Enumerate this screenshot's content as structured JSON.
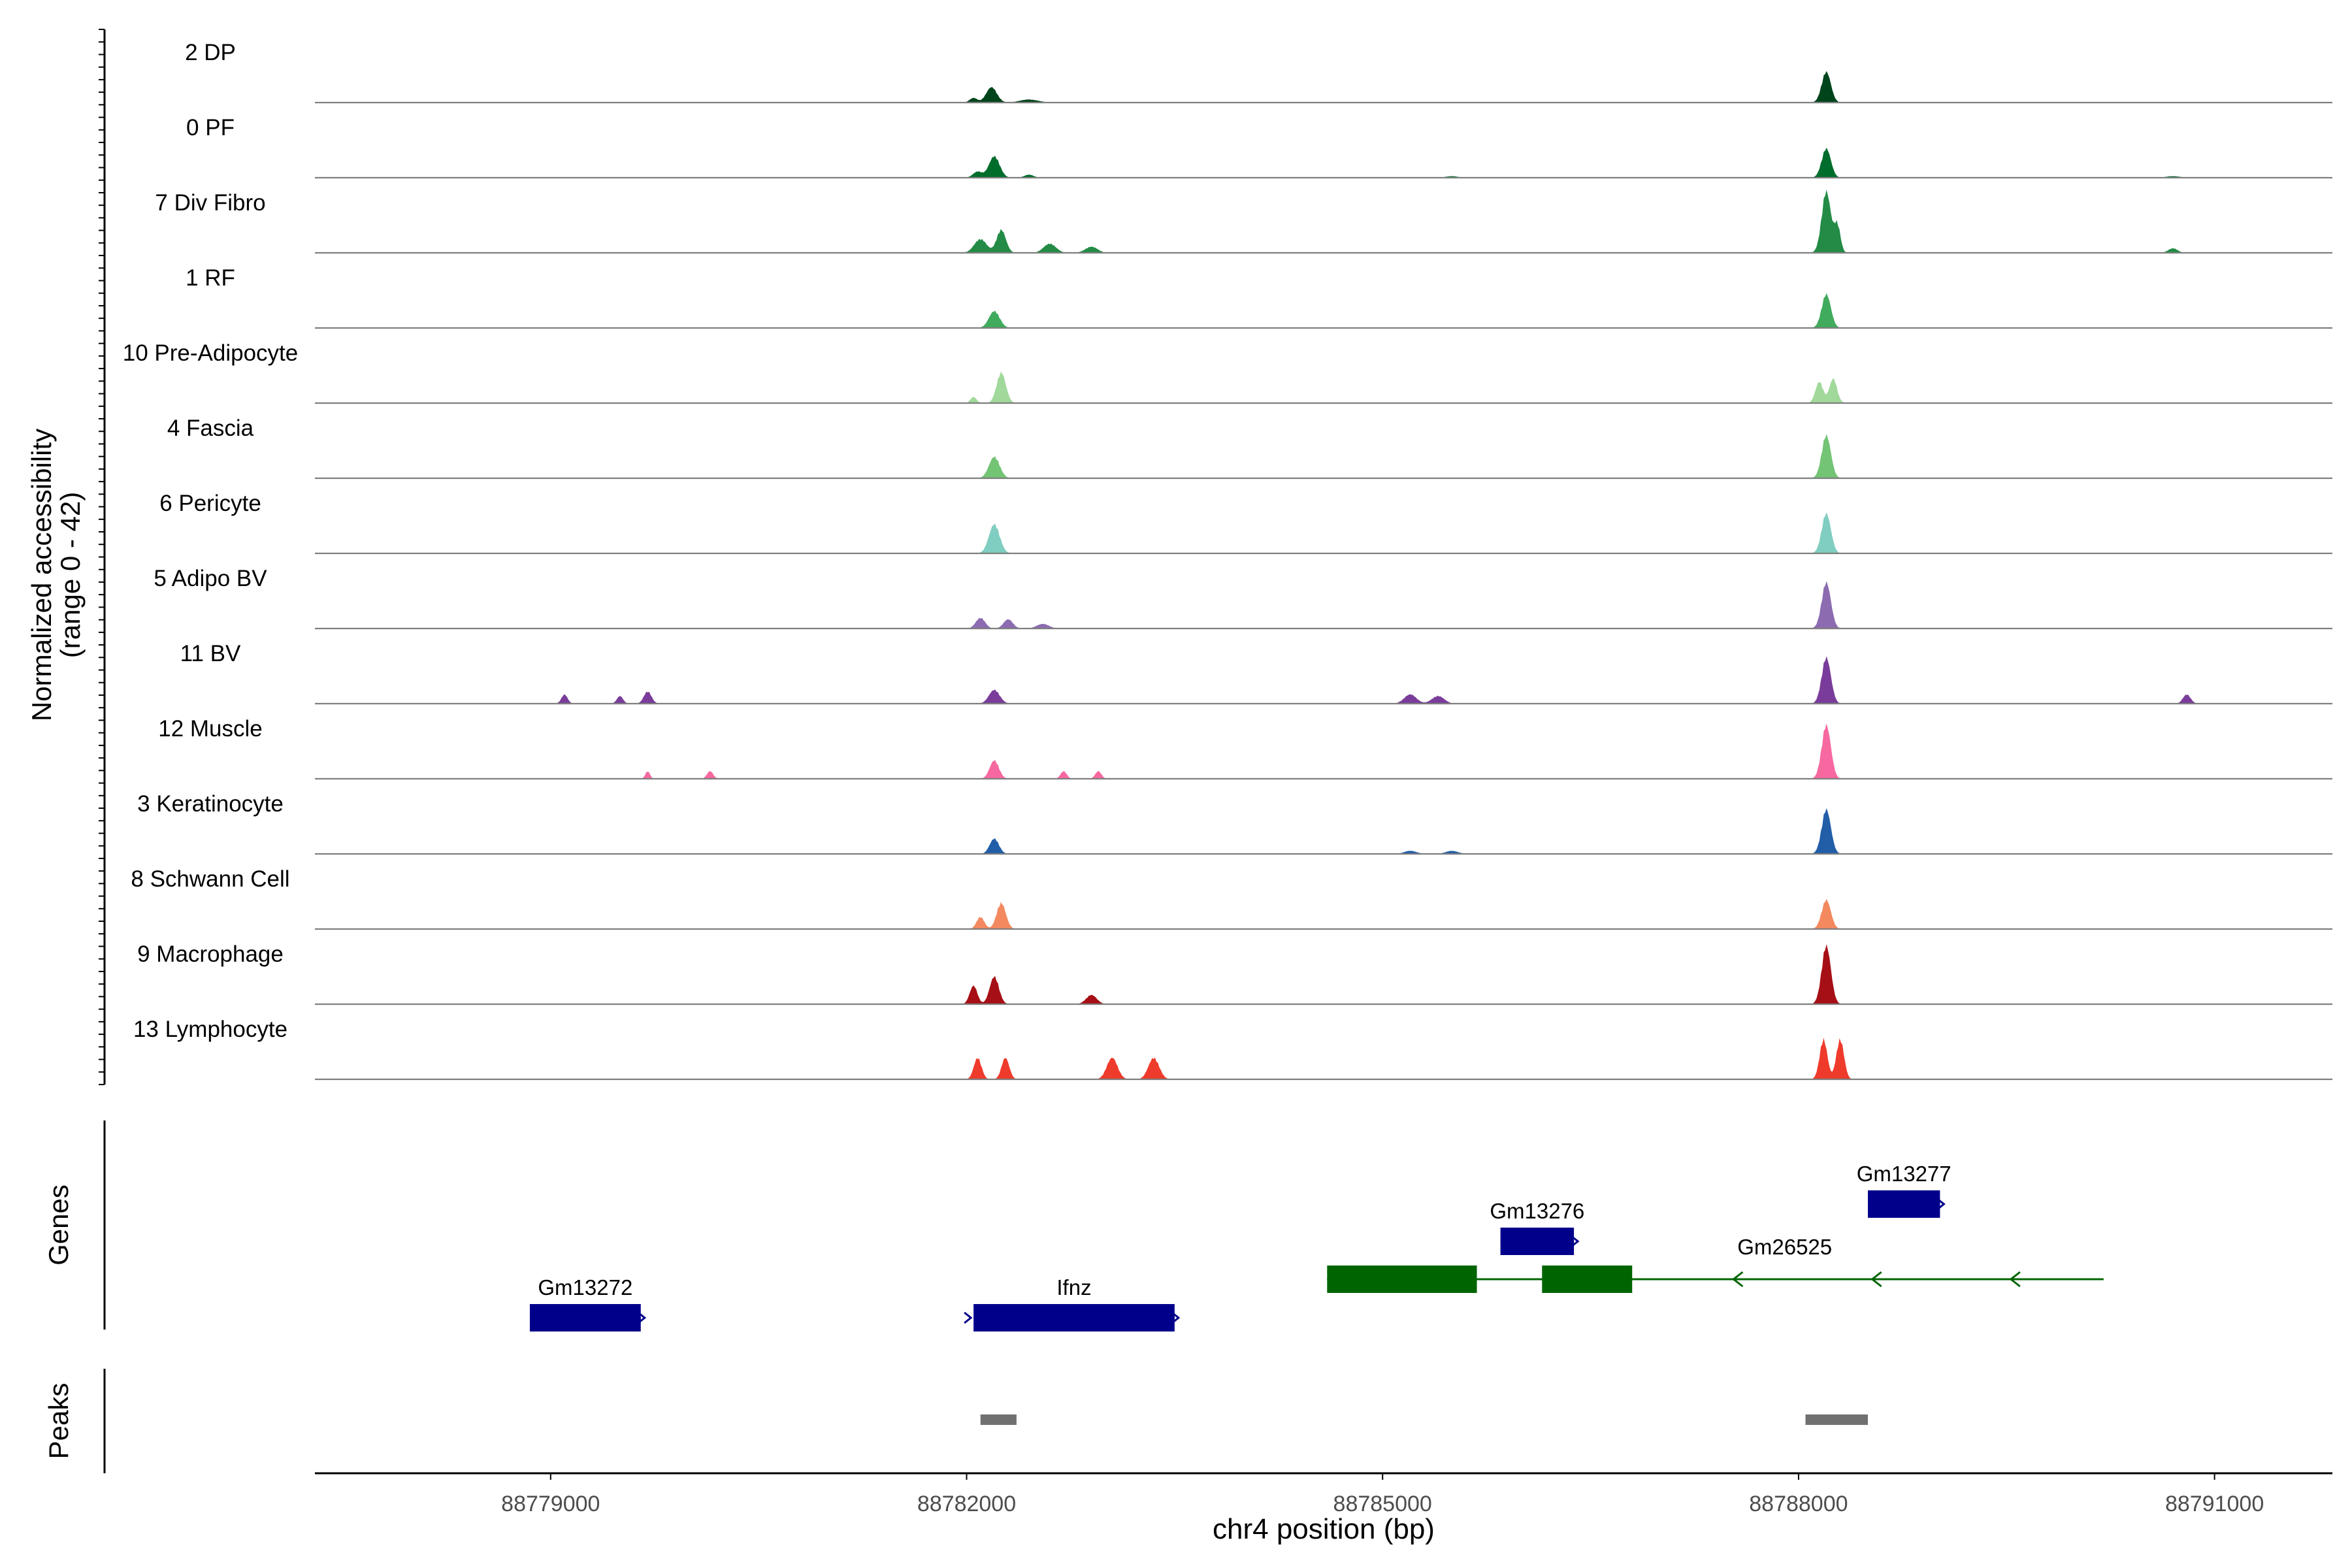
{
  "chart_data": {
    "type": "area",
    "title": "",
    "chromosome": "chr4",
    "ylabel_line1": "Normalized accessibility",
    "ylabel_line2": "(range 0 - 42)",
    "ylim": [
      0,
      42
    ],
    "xlabel": "chr4 position (bp)",
    "xlim": [
      88777300,
      88791850
    ],
    "xticks": [
      88779000,
      88782000,
      88785000,
      88788000,
      88791000
    ],
    "xtick_labels": [
      "88779000",
      "88782000",
      "88785000",
      "88788000",
      "88791000"
    ],
    "panel_labels": {
      "genes": "Genes",
      "peaks": "Peaks"
    },
    "series": [
      {
        "name": "2 DP",
        "color": "#00441b",
        "peaks": [
          [
            88782050,
            3,
            50
          ],
          [
            88782180,
            10,
            70
          ],
          [
            88782450,
            2,
            120
          ],
          [
            88788200,
            20,
            60
          ]
        ]
      },
      {
        "name": "0 PF",
        "color": "#006d2c",
        "peaks": [
          [
            88782080,
            4,
            60
          ],
          [
            88782200,
            14,
            70
          ],
          [
            88782450,
            2,
            60
          ],
          [
            88785500,
            1,
            80
          ],
          [
            88788200,
            19,
            60
          ],
          [
            88790700,
            1,
            90
          ]
        ]
      },
      {
        "name": "7 Div Fibro",
        "color": "#238b45",
        "peaks": [
          [
            88782100,
            9,
            80
          ],
          [
            88782250,
            15,
            60
          ],
          [
            88782600,
            6,
            80
          ],
          [
            88782900,
            4,
            80
          ],
          [
            88788200,
            40,
            60
          ],
          [
            88788280,
            18,
            40
          ],
          [
            88790700,
            3,
            60
          ]
        ]
      },
      {
        "name": "1 RF",
        "color": "#41ab5d",
        "peaks": [
          [
            88782200,
            11,
            70
          ],
          [
            88788200,
            22,
            60
          ]
        ]
      },
      {
        "name": "10 Pre-Adipocyte",
        "color": "#a1d99b",
        "peaks": [
          [
            88782050,
            4,
            40
          ],
          [
            88782250,
            20,
            60
          ],
          [
            88788150,
            14,
            50
          ],
          [
            88788250,
            16,
            50
          ]
        ]
      },
      {
        "name": "4 Fascia",
        "color": "#74c476",
        "peaks": [
          [
            88782200,
            14,
            70
          ],
          [
            88788200,
            28,
            60
          ]
        ]
      },
      {
        "name": "6 Pericyte",
        "color": "#80cdc1",
        "peaks": [
          [
            88782200,
            19,
            70
          ],
          [
            88788200,
            26,
            60
          ]
        ]
      },
      {
        "name": "5 Adipo BV",
        "color": "#8c6bb1",
        "peaks": [
          [
            88782100,
            7,
            60
          ],
          [
            88782300,
            6,
            60
          ],
          [
            88782550,
            3,
            80
          ],
          [
            88788200,
            30,
            60
          ]
        ]
      },
      {
        "name": "11 BV",
        "color": "#7a3c9a",
        "peaks": [
          [
            88779100,
            6,
            40
          ],
          [
            88779500,
            5,
            40
          ],
          [
            88779700,
            8,
            50
          ],
          [
            88782200,
            9,
            70
          ],
          [
            88785200,
            6,
            80
          ],
          [
            88785400,
            5,
            80
          ],
          [
            88788200,
            30,
            60
          ],
          [
            88790800,
            6,
            50
          ]
        ]
      },
      {
        "name": "12 Muscle",
        "color": "#f768a1",
        "peaks": [
          [
            88779700,
            5,
            30
          ],
          [
            88780150,
            5,
            40
          ],
          [
            88782200,
            12,
            60
          ],
          [
            88782700,
            5,
            40
          ],
          [
            88782950,
            5,
            40
          ],
          [
            88788200,
            35,
            60
          ]
        ]
      },
      {
        "name": "3 Keratinocyte",
        "color": "#225ea8",
        "peaks": [
          [
            88782200,
            10,
            60
          ],
          [
            88785200,
            2,
            80
          ],
          [
            88785500,
            2,
            80
          ],
          [
            88788200,
            29,
            60
          ]
        ]
      },
      {
        "name": "8 Schwann Cell",
        "color": "#f4895f",
        "peaks": [
          [
            88782100,
            8,
            50
          ],
          [
            88782250,
            17,
            60
          ],
          [
            88788200,
            19,
            60
          ]
        ]
      },
      {
        "name": "9 Macrophage",
        "color": "#a50f15",
        "peaks": [
          [
            88782050,
            12,
            50
          ],
          [
            88782200,
            18,
            60
          ],
          [
            88782900,
            6,
            70
          ],
          [
            88788200,
            38,
            60
          ]
        ]
      },
      {
        "name": "13 Lymphocyte",
        "color": "#ef3b2c",
        "peaks": [
          [
            88782080,
            14,
            50
          ],
          [
            88782280,
            14,
            50
          ],
          [
            88783050,
            14,
            70
          ],
          [
            88783350,
            14,
            70
          ],
          [
            88788180,
            26,
            50
          ],
          [
            88788300,
            26,
            50
          ]
        ]
      }
    ],
    "genes": [
      {
        "name": "Gm13272",
        "start": 88778850,
        "end": 88779650,
        "strand": "+",
        "color": "#00008b",
        "row": 0,
        "blocks": [
          [
            88778850,
            88779650
          ]
        ]
      },
      {
        "name": "Ifnz",
        "start": 88782050,
        "end": 88783500,
        "strand": "+",
        "color": "#00008b",
        "row": 0,
        "blocks": [
          [
            88782050,
            88783500
          ]
        ]
      },
      {
        "name": "Gm26525",
        "start": 88784600,
        "end": 88790200,
        "strand": "-",
        "color": "#006400",
        "row": 1,
        "blocks": [
          [
            88784600,
            88785680
          ],
          [
            88786150,
            88786800
          ]
        ]
      },
      {
        "name": "Gm13276",
        "start": 88785850,
        "end": 88786380,
        "strand": "+",
        "color": "#00008b",
        "row": 2,
        "blocks": [
          [
            88785850,
            88786380
          ]
        ]
      },
      {
        "name": "Gm13277",
        "start": 88788500,
        "end": 88789020,
        "strand": "+",
        "color": "#00008b",
        "row": 3,
        "blocks": [
          [
            88788500,
            88789020
          ]
        ]
      }
    ],
    "peaks": [
      {
        "start": 88782100,
        "end": 88782360,
        "color": "#707070"
      },
      {
        "start": 88788050,
        "end": 88788500,
        "color": "#707070"
      }
    ]
  }
}
